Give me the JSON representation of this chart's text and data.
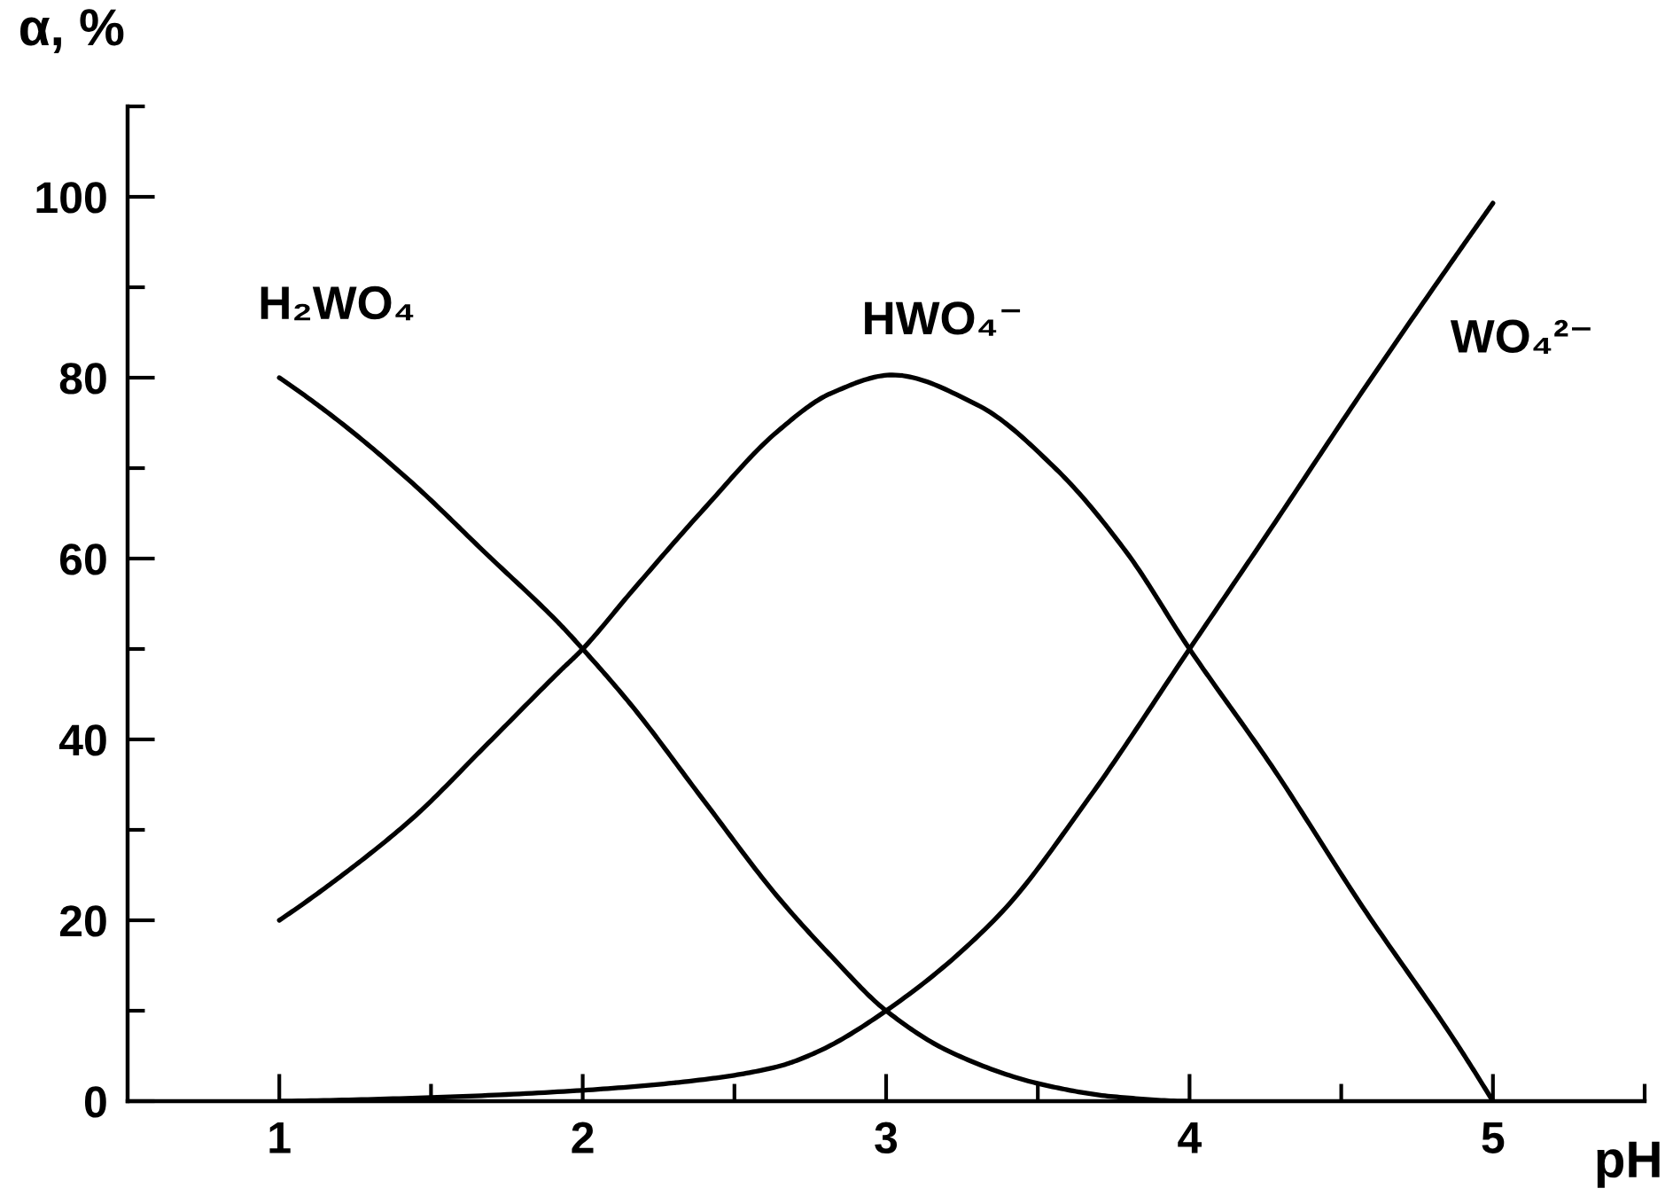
{
  "chart_data": {
    "type": "line",
    "xlabel": "pH",
    "ylabel": "α, %",
    "xlim": [
      0.5,
      5.5
    ],
    "ylim": [
      0,
      110
    ],
    "xticks": [
      1,
      {
        "value": 1.5,
        "label": null
      },
      2,
      {
        "value": 2.5,
        "label": null
      },
      3,
      {
        "value": 3.5,
        "label": null
      },
      4,
      {
        "value": 4.5,
        "label": null
      },
      5,
      {
        "value": 5.5,
        "label": null
      }
    ],
    "yticks": [
      0,
      {
        "value": 10,
        "label": null
      },
      20,
      {
        "value": 30,
        "label": null
      },
      40,
      {
        "value": 50,
        "label": null
      },
      60,
      {
        "value": 70,
        "label": null
      },
      80,
      {
        "value": 90,
        "label": null
      },
      100,
      {
        "value": 110,
        "label": null
      }
    ],
    "series": [
      {
        "name": "H₂WO₄",
        "color": "#000000",
        "x": [
          1,
          1.2,
          1.44,
          1.68,
          1.92,
          2,
          2.16,
          2.4,
          2.64,
          2.82,
          3,
          3.22,
          3.52,
          3.75,
          4
        ],
        "values": [
          80,
          75.1,
          68.3,
          60.6,
          52.9,
          50,
          43.8,
          33.2,
          22.7,
          16,
          10,
          5.3,
          1.8,
          0.5,
          0
        ]
      },
      {
        "name": "HWO₄⁻",
        "color": "#000000",
        "x": [
          1,
          1.2,
          1.44,
          1.68,
          1.92,
          2,
          2.16,
          2.4,
          2.64,
          2.82,
          3.02,
          3.3,
          3.56,
          3.79,
          4,
          4.27,
          4.57,
          4.87,
          5
        ],
        "values": [
          20,
          24.8,
          31.3,
          39.3,
          47.4,
          50,
          56.3,
          65.5,
          74,
          78.3,
          80.3,
          77,
          69.9,
          60.8,
          50,
          37.1,
          21.5,
          6.9,
          0
        ]
      },
      {
        "name": "WO₄²⁻",
        "color": "#000000",
        "x": [
          1,
          1.5,
          2,
          2.4,
          2.64,
          2.77,
          3,
          3.37,
          3.67,
          4,
          4.27,
          4.57,
          4.87,
          5
        ],
        "values": [
          0,
          0.4,
          1.2,
          2.4,
          3.8,
          5.4,
          10,
          20.5,
          33.6,
          50,
          63.4,
          78.5,
          93.1,
          99.3
        ]
      }
    ]
  }
}
